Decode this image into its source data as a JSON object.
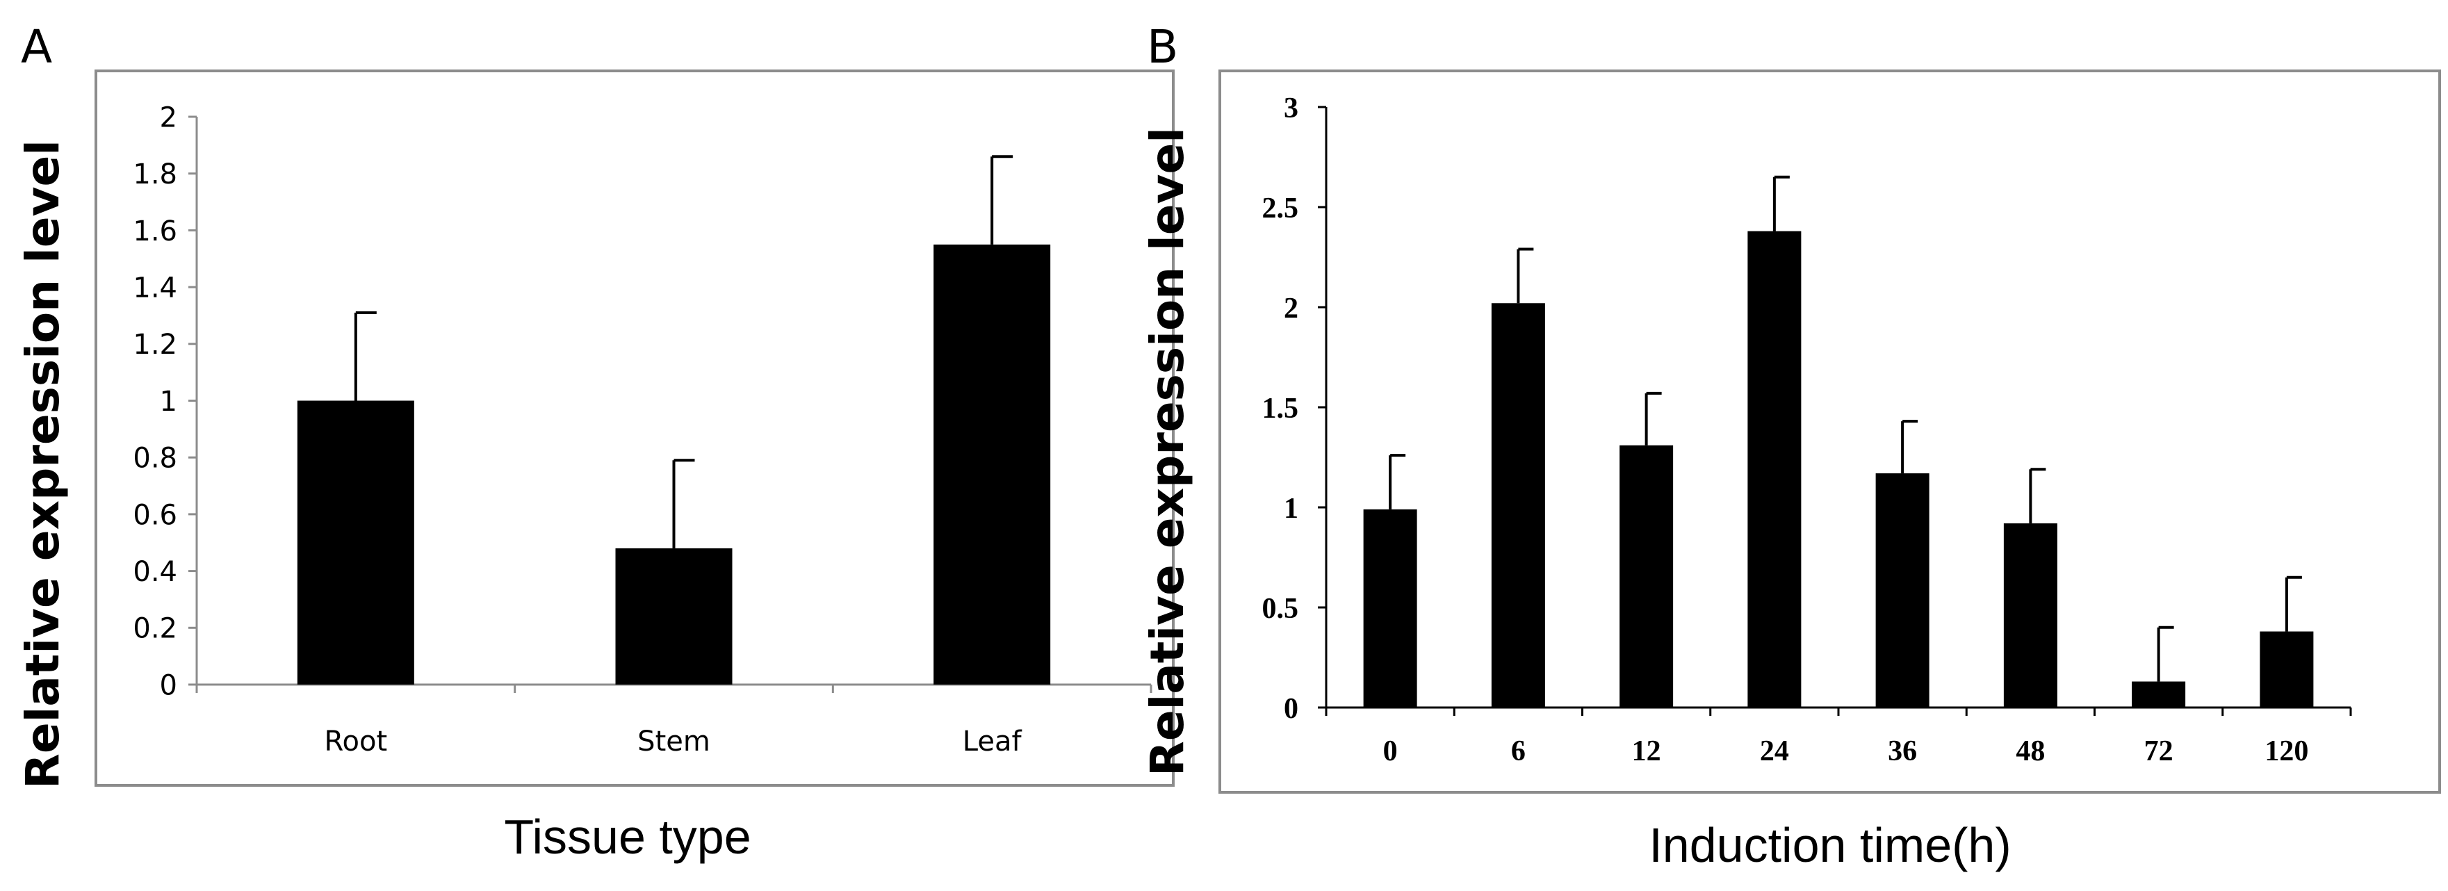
{
  "chart_data": [
    {
      "panel": "A",
      "type": "bar",
      "title": "",
      "xlabel": "Tissue type",
      "ylabel": "Relative expression level",
      "categories": [
        "Root",
        "Stem",
        "Leaf"
      ],
      "values": [
        1.0,
        0.48,
        1.55
      ],
      "errors": [
        0.31,
        0.31,
        0.31
      ],
      "ylim": [
        0,
        2
      ],
      "yticks": [
        "0",
        "0.2",
        "0.4",
        "0.6",
        "0.8",
        "1",
        "1.2",
        "1.4",
        "1.6",
        "1.8",
        "2"
      ],
      "bar_color": "#000000",
      "grid": false,
      "legend": "none"
    },
    {
      "panel": "B",
      "type": "bar",
      "title": "",
      "xlabel": "Induction time(h)",
      "ylabel": "Relative expression level",
      "categories": [
        "0",
        "6",
        "12",
        "24",
        "36",
        "48",
        "72",
        "120"
      ],
      "values": [
        0.99,
        2.02,
        1.31,
        2.38,
        1.17,
        0.92,
        0.13,
        0.38
      ],
      "errors": [
        0.27,
        0.27,
        0.26,
        0.27,
        0.26,
        0.27,
        0.27,
        0.27
      ],
      "ylim": [
        0,
        3
      ],
      "yticks": [
        "0",
        "0.5",
        "1",
        "1.5",
        "2",
        "2.5",
        "3"
      ],
      "bar_color": "#000000",
      "grid": false,
      "legend": "none"
    }
  ]
}
